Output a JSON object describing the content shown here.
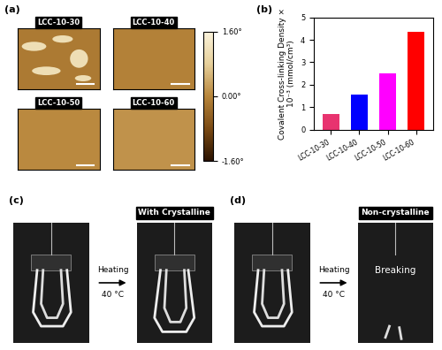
{
  "panel_a": {
    "panel_label": "(a)",
    "images": [
      "LCC-10-30",
      "LCC-10-40",
      "LCC-10-50",
      "LCC-10-60"
    ],
    "colorbar": {
      "lim": [
        -1.6,
        1.6
      ],
      "ticks": [
        {
          "value": 1.6,
          "label": "1.60°"
        },
        {
          "value": 0.0,
          "label": "0.00°"
        },
        {
          "value": -1.6,
          "label": "-1.60°"
        }
      ]
    }
  },
  "chart_data": {
    "type": "bar",
    "panel_label": "(b)",
    "y_label": "Covalent Cross-linking Density × 10⁻³ (mmol/cm³)",
    "categories": [
      "LCC-10-30",
      "LCC-10-40",
      "LCC-10-50",
      "LCC-10-60"
    ],
    "values": [
      0.7,
      1.55,
      2.5,
      4.35
    ],
    "colors": [
      "#e8336f",
      "#0000ff",
      "#ff00ff",
      "#ff0000"
    ],
    "ylim": [
      0,
      5
    ],
    "yticks": [
      0,
      1,
      2,
      3,
      4,
      5
    ]
  },
  "panel_c": {
    "panel_label": "(c)",
    "title": "With Crystalline",
    "arrow_top": "Heating",
    "arrow_bottom": "40 °C"
  },
  "panel_d": {
    "panel_label": "(d)",
    "title": "Non-crystalline",
    "arrow_top": "Heating",
    "arrow_bottom": "40 °C",
    "result": "Breaking"
  }
}
